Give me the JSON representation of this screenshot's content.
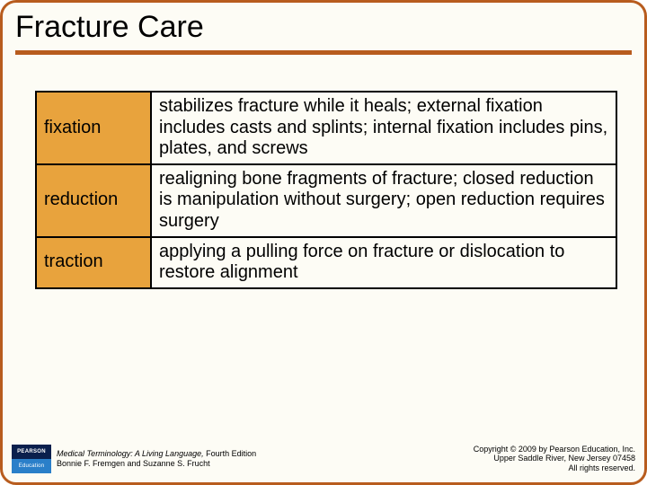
{
  "title": "Fracture Care",
  "table": {
    "rows": [
      {
        "term": "fixation",
        "definition": "stabilizes fracture while it heals; external fixation includes casts and splints; internal fixation includes pins, plates, and screws"
      },
      {
        "term": "reduction",
        "definition": "realigning bone fragments of fracture; closed reduction is manipulation without surgery; open reduction requires surgery"
      },
      {
        "term": "traction",
        "definition": "applying a pulling force on fracture or dislocation to restore alignment"
      }
    ],
    "term_bg": "#e8a33d",
    "border_color": "#000000",
    "fontsize": 20
  },
  "accent_color": "#b85c1e",
  "background_color": "#fdfcf5",
  "logo": {
    "top": "PEARSON",
    "bottom": "Education"
  },
  "book": {
    "title": "Medical Terminology: A Living Language,",
    "edition": " Fourth Edition",
    "authors": "Bonnie F. Fremgen and Suzanne S. Frucht"
  },
  "copyright": {
    "line1": "Copyright © 2009 by Pearson Education, Inc.",
    "line2": "Upper Saddle River, New Jersey 07458",
    "line3": "All rights reserved."
  }
}
